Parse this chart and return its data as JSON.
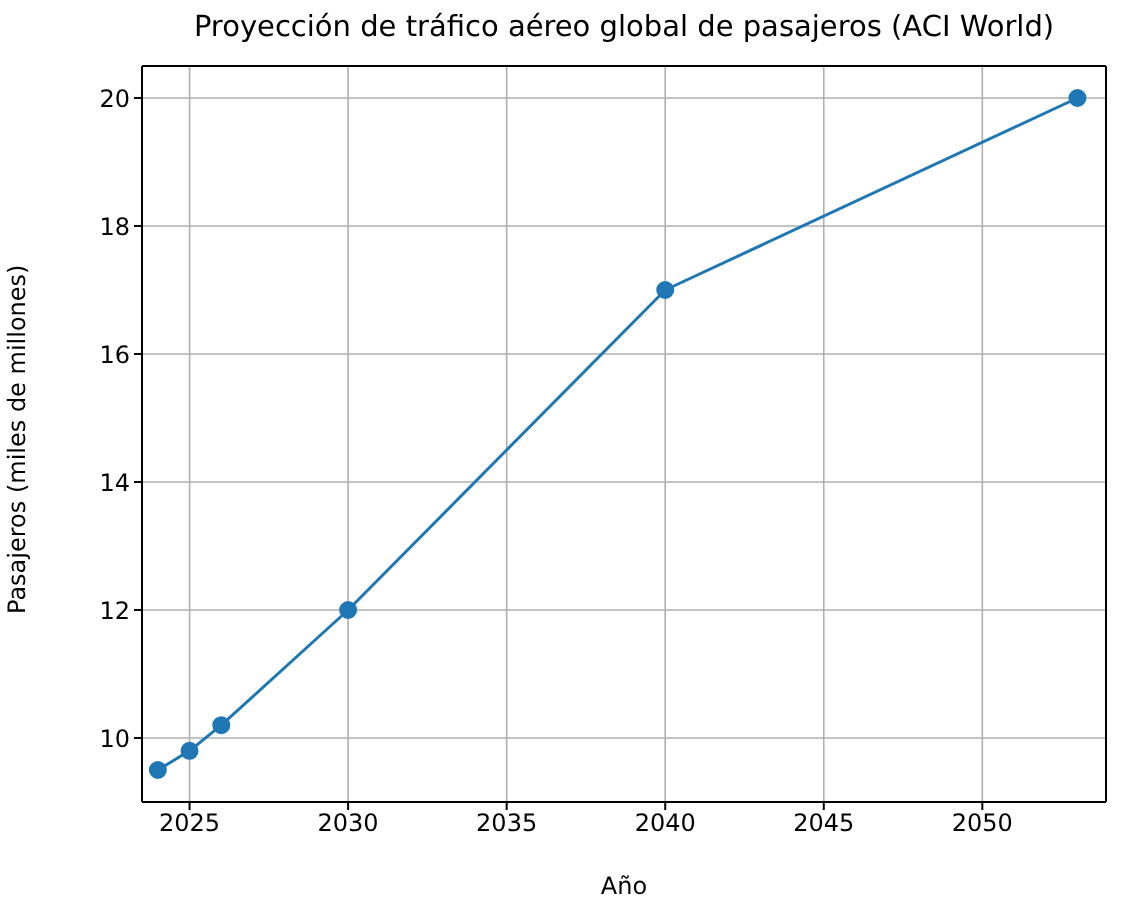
{
  "chart_data": {
    "type": "line",
    "title": "Proyección de tráfico aéreo global de pasajeros (ACI World)",
    "xlabel": "Año",
    "ylabel": "Pasajeros (miles de millones)",
    "x": [
      2024,
      2025,
      2026,
      2030,
      2040,
      2053
    ],
    "series": [
      {
        "color": "#1f77b4",
        "values": [
          9.5,
          9.8,
          10.2,
          12,
          17,
          20
        ]
      }
    ],
    "xlim": [
      2023.5,
      2053.9
    ],
    "xticks": [
      2025,
      2030,
      2035,
      2040,
      2045,
      2050
    ],
    "ylim": [
      9.0,
      20.5
    ],
    "yticks": [
      10,
      12,
      14,
      16,
      18,
      20
    ],
    "grid": true,
    "marker": "circle",
    "line_style": "solid"
  }
}
